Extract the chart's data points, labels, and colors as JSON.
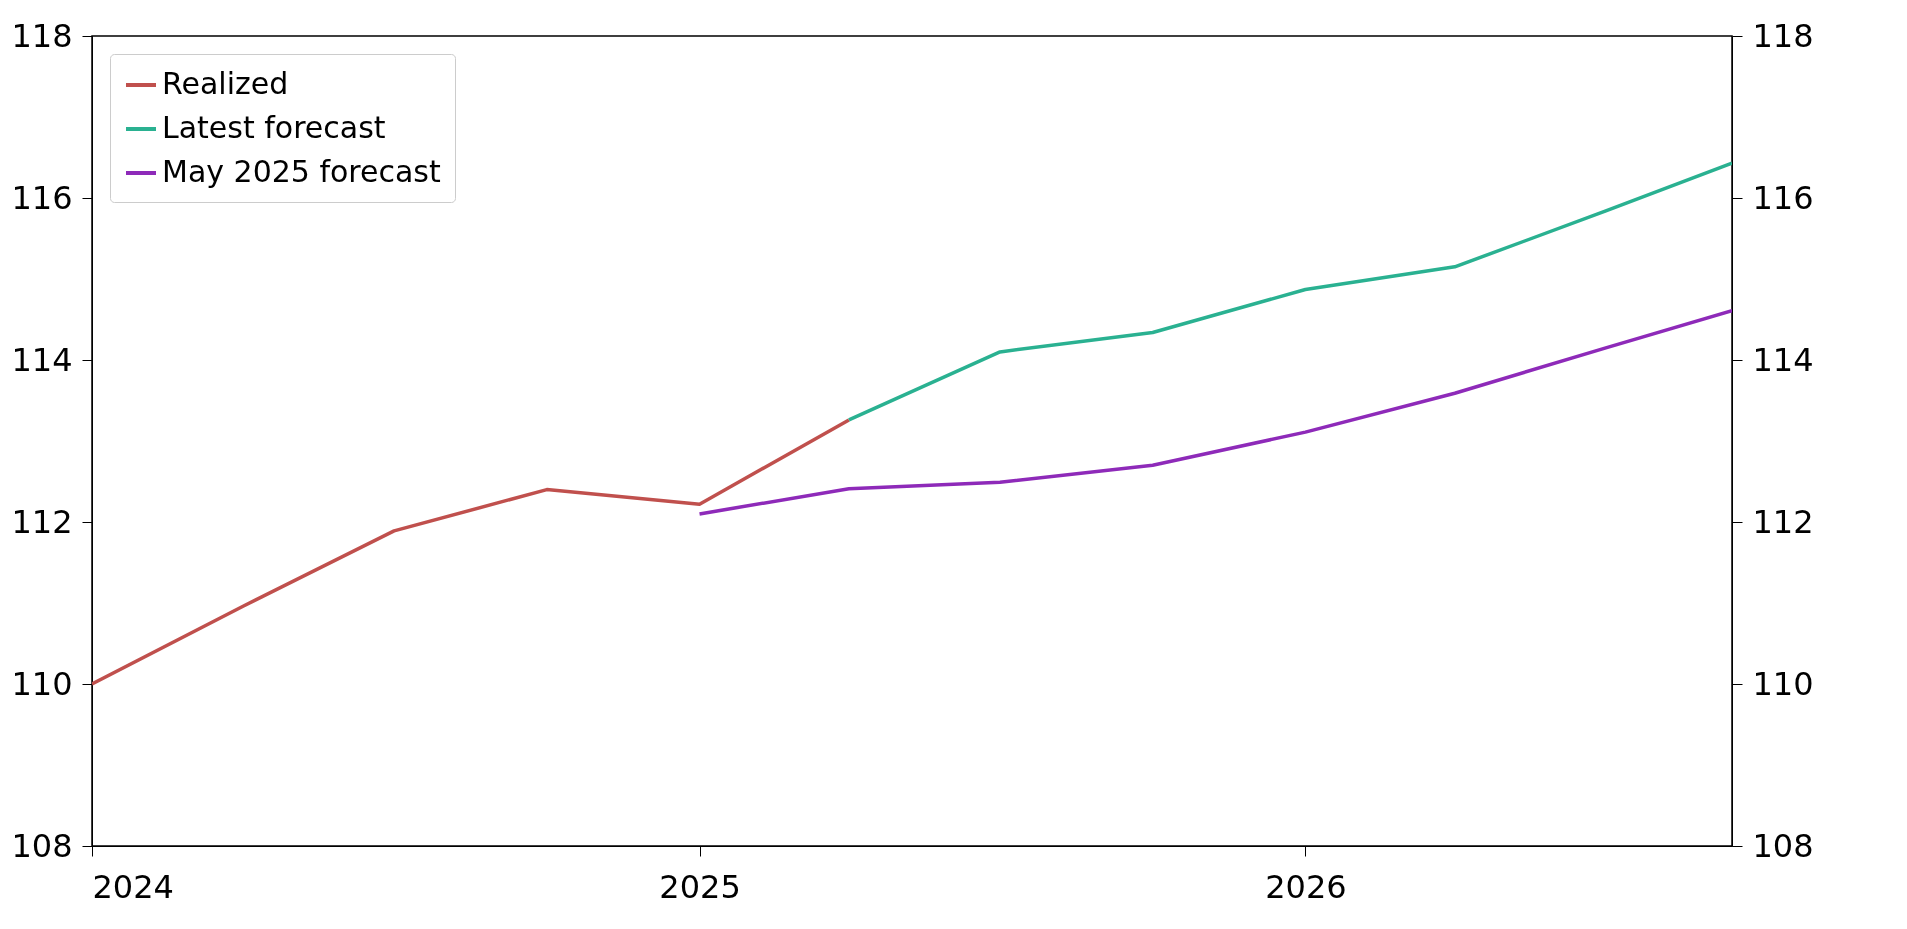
{
  "chart_data": {
    "type": "line",
    "xlim": [
      "2024-01-01",
      "2026-09-15"
    ],
    "xticks": [
      "2024",
      "2025",
      "2026"
    ],
    "ylim": [
      108,
      118
    ],
    "yticks": [
      108,
      110,
      112,
      114,
      116,
      118
    ],
    "y2lim": [
      108,
      118
    ],
    "y2ticks": [
      108,
      110,
      112,
      114,
      116,
      118
    ],
    "grid": false,
    "legend": "top left",
    "line_style": "solid",
    "marker": "none",
    "series": [
      {
        "name": "Realized",
        "color": "#c0504d",
        "x": [
          "2024-01-01",
          "2024-04-01",
          "2024-07-01",
          "2024-10-01",
          "2025-01-01",
          "2025-04-01"
        ],
        "values": [
          110.0,
          110.96,
          111.89,
          112.4,
          112.22,
          113.26
        ]
      },
      {
        "name": "Latest forecast",
        "color": "#2ab191",
        "x": [
          "2025-04-01",
          "2025-07-01",
          "2025-10-01",
          "2026-01-01",
          "2026-04-01",
          "2026-07-01",
          "2026-09-15"
        ],
        "values": [
          113.26,
          114.1,
          114.34,
          114.87,
          115.15,
          115.84,
          116.43
        ]
      },
      {
        "name": "May 2025 forecast",
        "color": "#8e2ab9",
        "x": [
          "2025-01-01",
          "2025-04-01",
          "2025-07-01",
          "2025-10-01",
          "2026-01-01",
          "2026-04-01",
          "2026-07-01",
          "2026-09-15"
        ],
        "values": [
          112.1,
          112.41,
          112.49,
          112.7,
          113.11,
          113.59,
          114.15,
          114.61
        ]
      }
    ]
  }
}
